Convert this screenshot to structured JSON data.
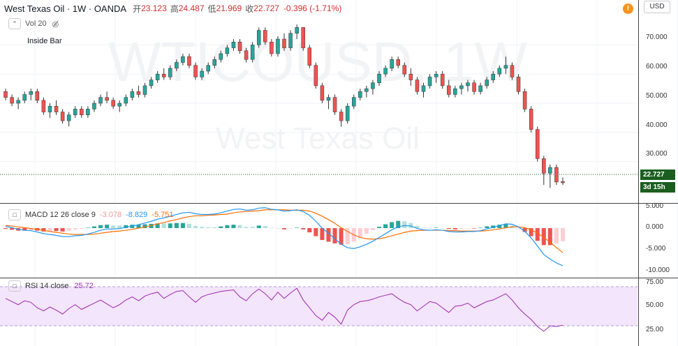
{
  "header": {
    "symbol_line": "West Texas Oil · 1W · OANDA",
    "open_label": "开",
    "open_value": "23.123",
    "high_label": "高",
    "high_value": "24.487",
    "low_label": "低",
    "low_value": "21.969",
    "close_label": "收",
    "close_value": "22.727",
    "change": "-0.396 (-1.71%)"
  },
  "indicators": {
    "vol": "Vol 20",
    "inside_bar": "Inside Bar",
    "macd_label": "MACD 12 26 close 9",
    "macd_hist": "-3.078",
    "macd_line": "-8.829",
    "macd_signal": "-5.751",
    "rsi_label": "RSI 14 close",
    "rsi_value": "25.72"
  },
  "watermark": {
    "main": "WTICOUSD, 1W",
    "sub": "West Texas Oil"
  },
  "currency": "USD",
  "alert_icon": "!",
  "price_label": "22.727",
  "countdown": "3d 15h",
  "price_ticks": [
    "70.000",
    "60.000",
    "50.000",
    "40.000",
    "30.000"
  ],
  "macd_ticks": [
    "5.000",
    "0.000",
    "-5.000",
    "-10.000"
  ],
  "rsi_ticks": [
    "75.00",
    "50.00",
    "25.00"
  ],
  "colors": {
    "up": "#26a69a",
    "down": "#ef5350",
    "macd_line": "#2196f3",
    "signal_line": "#ff6d00",
    "rsi_line": "#9c27b0",
    "rsi_band": "#f3e5fb",
    "price_line": "#1b5e20"
  },
  "chart_data": {
    "type": "candlestick",
    "ylim": [
      20,
      78
    ],
    "last_close": 22.727,
    "ohlc_weekly": [
      [
        54,
        55,
        51,
        52
      ],
      [
        52,
        53,
        49,
        50
      ],
      [
        50,
        52,
        48,
        51
      ],
      [
        51,
        54,
        50,
        53
      ],
      [
        53,
        55,
        51,
        54
      ],
      [
        54,
        55,
        50,
        51
      ],
      [
        51,
        52,
        46,
        47
      ],
      [
        47,
        50,
        45,
        49
      ],
      [
        49,
        51,
        46,
        47
      ],
      [
        47,
        48,
        43,
        44
      ],
      [
        44,
        47,
        42,
        46
      ],
      [
        46,
        49,
        45,
        48
      ],
      [
        48,
        49,
        45,
        46
      ],
      [
        46,
        49,
        45,
        48
      ],
      [
        48,
        51,
        47,
        50
      ],
      [
        50,
        53,
        49,
        52
      ],
      [
        52,
        54,
        50,
        51
      ],
      [
        51,
        52,
        48,
        49
      ],
      [
        49,
        51,
        47,
        50
      ],
      [
        50,
        53,
        49,
        52
      ],
      [
        52,
        55,
        51,
        54
      ],
      [
        54,
        56,
        52,
        53
      ],
      [
        53,
        57,
        52,
        56
      ],
      [
        56,
        59,
        55,
        58
      ],
      [
        58,
        61,
        57,
        60
      ],
      [
        60,
        62,
        58,
        59
      ],
      [
        59,
        63,
        58,
        62
      ],
      [
        62,
        65,
        61,
        64
      ],
      [
        64,
        67,
        63,
        66
      ],
      [
        66,
        67,
        62,
        63
      ],
      [
        63,
        64,
        58,
        59
      ],
      [
        59,
        62,
        58,
        61
      ],
      [
        61,
        64,
        60,
        63
      ],
      [
        63,
        66,
        62,
        65
      ],
      [
        65,
        68,
        64,
        67
      ],
      [
        67,
        70,
        66,
        69
      ],
      [
        69,
        72,
        68,
        71
      ],
      [
        71,
        72,
        67,
        68
      ],
      [
        68,
        69,
        64,
        65
      ],
      [
        65,
        71,
        64,
        70
      ],
      [
        70,
        76,
        69,
        75
      ],
      [
        75,
        76,
        70,
        71
      ],
      [
        71,
        72,
        66,
        67
      ],
      [
        67,
        73,
        66,
        72
      ],
      [
        72,
        74,
        68,
        69
      ],
      [
        69,
        75,
        68,
        74
      ],
      [
        74,
        77,
        72,
        76
      ],
      [
        76,
        76,
        68,
        69
      ],
      [
        69,
        70,
        62,
        63
      ],
      [
        63,
        64,
        55,
        56
      ],
      [
        56,
        57,
        50,
        51
      ],
      [
        51,
        53,
        48,
        52
      ],
      [
        52,
        53,
        46,
        47
      ],
      [
        47,
        48,
        42,
        44
      ],
      [
        44,
        50,
        43,
        49
      ],
      [
        49,
        53,
        48,
        52
      ],
      [
        52,
        55,
        51,
        54
      ],
      [
        54,
        56,
        52,
        55
      ],
      [
        55,
        58,
        53,
        57
      ],
      [
        57,
        61,
        56,
        60
      ],
      [
        60,
        63,
        59,
        62
      ],
      [
        62,
        66,
        61,
        65
      ],
      [
        65,
        66,
        62,
        63
      ],
      [
        63,
        64,
        59,
        60
      ],
      [
        60,
        62,
        56,
        58
      ],
      [
        58,
        59,
        53,
        54
      ],
      [
        54,
        57,
        52,
        56
      ],
      [
        56,
        60,
        55,
        59
      ],
      [
        59,
        61,
        57,
        60
      ],
      [
        60,
        61,
        55,
        56
      ],
      [
        56,
        58,
        52,
        53
      ],
      [
        53,
        56,
        52,
        55
      ],
      [
        55,
        57,
        53,
        56
      ],
      [
        56,
        58,
        54,
        57
      ],
      [
        57,
        58,
        53,
        54
      ],
      [
        54,
        57,
        53,
        56
      ],
      [
        56,
        59,
        55,
        58
      ],
      [
        58,
        61,
        57,
        60
      ],
      [
        60,
        63,
        59,
        62
      ],
      [
        62,
        66,
        60,
        63
      ],
      [
        63,
        64,
        58,
        59
      ],
      [
        59,
        60,
        53,
        54
      ],
      [
        54,
        55,
        47,
        48
      ],
      [
        48,
        49,
        40,
        41
      ],
      [
        41,
        42,
        30,
        31
      ],
      [
        31,
        32,
        22,
        26
      ],
      [
        26,
        29,
        21,
        28
      ],
      [
        28,
        29,
        22,
        23
      ],
      [
        23.123,
        24.487,
        21.969,
        22.727
      ]
    ],
    "macd_weekly": [
      [
        0.4,
        0.6
      ],
      [
        0.1,
        0.5
      ],
      [
        -0.3,
        0.3
      ],
      [
        -0.5,
        0.1
      ],
      [
        -0.6,
        -0.1
      ],
      [
        -0.9,
        -0.3
      ],
      [
        -1.3,
        -0.5
      ],
      [
        -1.5,
        -0.8
      ],
      [
        -1.7,
        -1.0
      ],
      [
        -2.0,
        -1.2
      ],
      [
        -2.0,
        -1.4
      ],
      [
        -1.8,
        -1.5
      ],
      [
        -1.7,
        -1.5
      ],
      [
        -1.4,
        -1.5
      ],
      [
        -1.0,
        -1.4
      ],
      [
        -0.5,
        -1.2
      ],
      [
        -0.2,
        -1.0
      ],
      [
        -0.2,
        -0.8
      ],
      [
        -0.1,
        -0.7
      ],
      [
        0.2,
        -0.5
      ],
      [
        0.5,
        -0.3
      ],
      [
        0.8,
        0.0
      ],
      [
        1.2,
        0.3
      ],
      [
        1.6,
        0.6
      ],
      [
        2.1,
        1.0
      ],
      [
        2.4,
        1.3
      ],
      [
        2.8,
        1.7
      ],
      [
        3.2,
        2.0
      ],
      [
        3.6,
        2.4
      ],
      [
        3.7,
        2.7
      ],
      [
        3.4,
        2.9
      ],
      [
        3.2,
        2.9
      ],
      [
        3.2,
        3.0
      ],
      [
        3.3,
        3.1
      ],
      [
        3.6,
        3.2
      ],
      [
        4.0,
        3.3
      ],
      [
        4.4,
        3.6
      ],
      [
        4.5,
        3.8
      ],
      [
        4.2,
        3.9
      ],
      [
        4.3,
        4.0
      ],
      [
        4.7,
        4.1
      ],
      [
        4.8,
        4.3
      ],
      [
        4.4,
        4.3
      ],
      [
        4.3,
        4.3
      ],
      [
        4.0,
        4.3
      ],
      [
        4.1,
        4.2
      ],
      [
        4.3,
        4.2
      ],
      [
        3.9,
        4.2
      ],
      [
        3.0,
        4.0
      ],
      [
        1.6,
        3.5
      ],
      [
        0.0,
        2.8
      ],
      [
        -1.2,
        2.0
      ],
      [
        -2.5,
        1.1
      ],
      [
        -3.8,
        0.1
      ],
      [
        -4.6,
        -0.8
      ],
      [
        -4.8,
        -1.6
      ],
      [
        -4.4,
        -2.2
      ],
      [
        -3.8,
        -2.5
      ],
      [
        -3.1,
        -2.6
      ],
      [
        -2.2,
        -2.5
      ],
      [
        -1.3,
        -2.2
      ],
      [
        -0.4,
        -1.8
      ],
      [
        0.3,
        -1.4
      ],
      [
        0.6,
        -1.0
      ],
      [
        0.5,
        -0.7
      ],
      [
        -0.1,
        -0.6
      ],
      [
        -0.4,
        -0.5
      ],
      [
        -0.5,
        -0.5
      ],
      [
        -0.4,
        -0.5
      ],
      [
        -0.5,
        -0.5
      ],
      [
        -0.8,
        -0.6
      ],
      [
        -0.9,
        -0.6
      ],
      [
        -0.9,
        -0.7
      ],
      [
        -0.8,
        -0.7
      ],
      [
        -0.8,
        -0.7
      ],
      [
        -0.6,
        -0.7
      ],
      [
        -0.2,
        -0.6
      ],
      [
        0.2,
        -0.4
      ],
      [
        0.6,
        -0.2
      ],
      [
        1.0,
        0.1
      ],
      [
        0.9,
        0.3
      ],
      [
        0.3,
        0.3
      ],
      [
        -0.8,
        0.1
      ],
      [
        -2.3,
        -0.4
      ],
      [
        -4.2,
        -1.2
      ],
      [
        -6.2,
        -2.2
      ],
      [
        -7.3,
        -3.3
      ],
      [
        -8.2,
        -4.6
      ],
      [
        -8.829,
        -5.751
      ]
    ],
    "rsi_weekly": [
      60,
      56,
      52,
      57,
      55,
      48,
      44,
      49,
      45,
      40,
      47,
      52,
      46,
      50,
      54,
      58,
      53,
      48,
      52,
      58,
      62,
      57,
      63,
      66,
      68,
      60,
      65,
      69,
      70,
      62,
      55,
      62,
      65,
      67,
      69,
      70,
      71,
      62,
      57,
      66,
      72,
      66,
      58,
      68,
      60,
      67,
      73,
      58,
      48,
      38,
      32,
      42,
      36,
      27,
      45,
      52,
      56,
      57,
      59,
      62,
      64,
      66,
      60,
      55,
      52,
      44,
      50,
      56,
      54,
      48,
      42,
      50,
      51,
      54,
      48,
      52,
      56,
      58,
      62,
      66,
      58,
      48,
      40,
      33,
      24,
      18,
      25,
      24,
      25.72
    ]
  }
}
